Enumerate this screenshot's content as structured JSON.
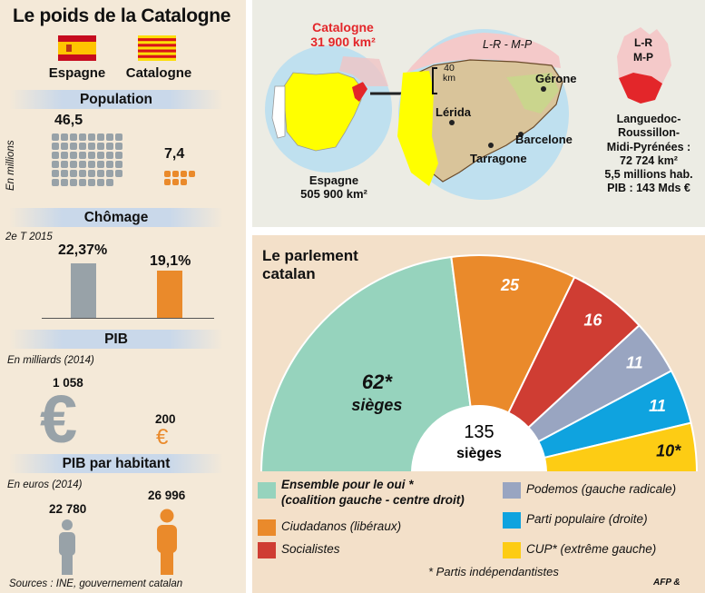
{
  "title": "Le poids de la Catalogne",
  "flags": {
    "spain": "Espagne",
    "catalonia": "Catalogne"
  },
  "population": {
    "header": "Population",
    "unit_note": "En millions",
    "spain": "46,5",
    "catalonia": "7,4",
    "spain_value": 46.5,
    "catalonia_value": 7.4
  },
  "unemployment": {
    "header": "Chômage",
    "period": "2e T 2015",
    "spain": "22,37%",
    "catalonia": "19,1%",
    "spain_value": 22.37,
    "catalonia_value": 19.1
  },
  "gdp": {
    "header": "PIB",
    "unit_note": "En milliards (2014)",
    "spain": "1 058",
    "catalonia": "200",
    "spain_value": 1058,
    "catalonia_value": 200,
    "symbol": "€"
  },
  "gdp_per_capita": {
    "header": "PIB par habitant",
    "unit_note": "En euros (2014)",
    "spain": "22 780",
    "catalonia": "26 996",
    "spain_value": 22780,
    "catalonia_value": 26996
  },
  "sources": "Sources : INE, gouvernement catalan",
  "map": {
    "catalonia_label": "Catalogne",
    "catalonia_area": "31 900 km²",
    "spain_label": "Espagne",
    "spain_area": "505 900 km²",
    "lrmp_abbrev": "L-R - M-P",
    "scale": "40 km",
    "cities": [
      "Gérone",
      "Lérida",
      "Barcelone",
      "Tarragone"
    ],
    "region_abbrev_line1": "L-R",
    "region_abbrev_line2": "M-P",
    "region_line1": "Languedoc-",
    "region_line2": "Roussillon-",
    "region_line3": "Midi-Pyrénées :",
    "region_area": "72 724 km²",
    "region_pop": "5,5 millions hab.",
    "region_pib": "PIB : 143 Mds €"
  },
  "parliament": {
    "title_line1": "Le parlement",
    "title_line2": "catalan",
    "total": "135",
    "total_label": "sièges",
    "footnote": "* Partis indépendantistes",
    "credit": "AFP &",
    "legend": [
      {
        "label": "Ensemble pour le oui *",
        "label2": "(coalition gauche - centre droit)",
        "color": "#96d3bd"
      },
      {
        "label": "Ciudadanos (libéraux)",
        "color": "#ea8a2b"
      },
      {
        "label": "Socialistes",
        "color": "#cf3d33"
      },
      {
        "label": "Podemos (gauche radicale)",
        "color": "#99a5c1"
      },
      {
        "label": "Parti populaire (droite)",
        "color": "#0fa3df"
      },
      {
        "label": "CUP* (extrême gauche)",
        "color": "#fdcc14"
      }
    ]
  },
  "chart_data": {
    "type": "pie",
    "title": "Le parlement catalan",
    "categories": [
      "Ensemble pour le oui",
      "Ciudadanos",
      "Socialistes",
      "Podemos",
      "Parti populaire",
      "CUP"
    ],
    "values": [
      62,
      25,
      16,
      11,
      11,
      10
    ],
    "labels": [
      "62*",
      "25",
      "16",
      "11",
      "11",
      "10*"
    ],
    "seat_word": "sièges",
    "total": 135,
    "colors": [
      "#96d3bd",
      "#ea8a2b",
      "#cf3d33",
      "#99a5c1",
      "#0fa3df",
      "#fdcc14"
    ]
  }
}
